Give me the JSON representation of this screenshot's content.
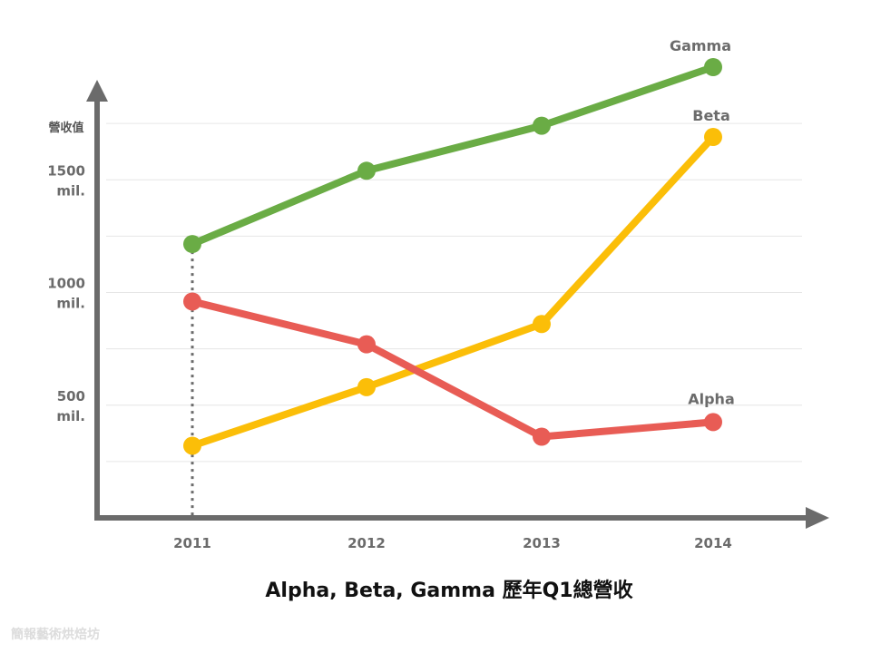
{
  "chart_data": {
    "type": "line",
    "title": "Alpha, Beta, Gamma 歷年Q1總營收",
    "ylabel": "營收值",
    "xlabel": "",
    "categories": [
      "2011",
      "2012",
      "2013",
      "2014"
    ],
    "y_ticks": [
      {
        "value": 500,
        "label": [
          "500",
          "mil."
        ]
      },
      {
        "value": 1000,
        "label": [
          "1000",
          "mil."
        ]
      },
      {
        "value": 1500,
        "label": [
          "1500",
          "mil."
        ]
      }
    ],
    "ylim": [
      0,
      2000
    ],
    "grid": true,
    "series": [
      {
        "name": "Gamma",
        "color": "#6aac45",
        "values": [
          1215,
          1540,
          1740,
          2000
        ]
      },
      {
        "name": "Beta",
        "color": "#fbbe08",
        "values": [
          320,
          580,
          860,
          1690
        ]
      },
      {
        "name": "Alpha",
        "color": "#e85c55",
        "values": [
          960,
          770,
          360,
          425
        ]
      }
    ],
    "annotations": [
      {
        "type": "dotted-vertical",
        "x": "2011",
        "color": "#6b6b6b"
      }
    ]
  },
  "watermark": "簡報藝術烘焙坊"
}
